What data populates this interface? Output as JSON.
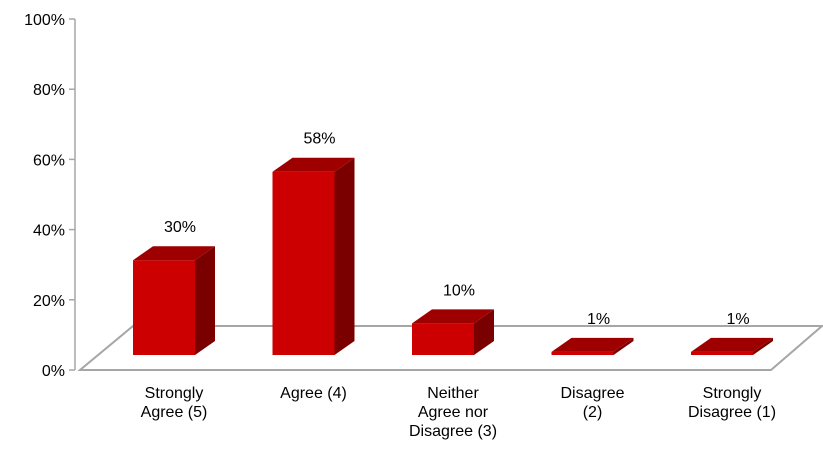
{
  "chart_data": {
    "type": "bar",
    "style": "3d",
    "categories": [
      [
        "Strongly",
        "Agree (5)"
      ],
      [
        "Agree (4)"
      ],
      [
        "Neither",
        "Agree nor",
        "Disagree (3)"
      ],
      [
        "Disagree",
        "(2)"
      ],
      [
        "Strongly",
        "Disagree (1)"
      ]
    ],
    "values": [
      30,
      58,
      10,
      1,
      1
    ],
    "data_labels": [
      "30%",
      "58%",
      "10%",
      "1%",
      "1%"
    ],
    "y_ticks": [
      0,
      20,
      40,
      60,
      80,
      100
    ],
    "y_tick_labels": [
      "0%",
      "20%",
      "40%",
      "60%",
      "80%",
      "100%"
    ],
    "ylim": [
      0,
      100
    ],
    "grid": false,
    "legend": "none",
    "colors": {
      "bar_front": "#cc0000",
      "bar_side": "#7a0000",
      "bar_top": "#9e0000",
      "floor": "#ffffff",
      "floor_edge": "#a6a6a6",
      "axis": "#a6a6a6"
    }
  }
}
